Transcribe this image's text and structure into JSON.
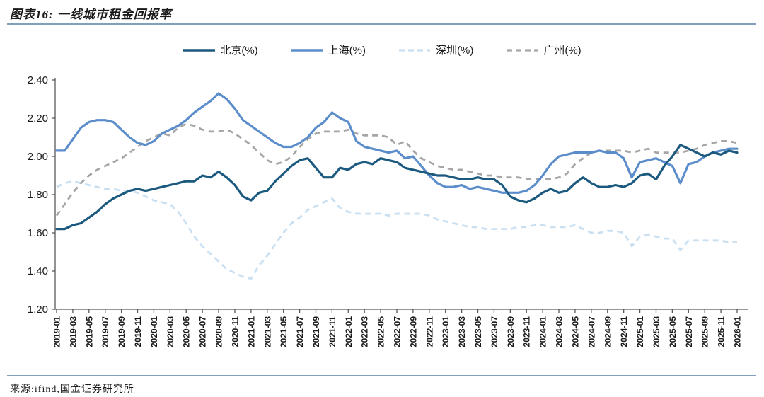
{
  "title": "图表16: 一线城市租金回报率",
  "source": "来源:ifind,国金证券研究所",
  "colors": {
    "beijing": "#1B597F",
    "shanghai": "#5C8DCB",
    "shenzhen": "#C9DFF2",
    "guangzhou": "#A6A6A6",
    "rule": "#7FA0BE",
    "axis": "#595959",
    "text": "#1A1A1A"
  },
  "chart_data": {
    "type": "line",
    "title": "",
    "ylabel": "",
    "xlabel": "",
    "ylim": [
      1.2,
      2.4
    ],
    "y_ticks": [
      1.2,
      1.4,
      1.6,
      1.8,
      2.0,
      2.2,
      2.4
    ],
    "grid": false,
    "legend_position": "top-center",
    "x_monthly_count": 85,
    "x_start": "2019-01",
    "x_end": "2026-01",
    "x_tick_labels": [
      "2019-01",
      "2019-03",
      "2019-05",
      "2019-07",
      "2019-09",
      "2019-11",
      "2020-01",
      "2020-03",
      "2020-05",
      "2020-07",
      "2020-09",
      "2020-11",
      "2021-01",
      "2021-03",
      "2021-05",
      "2021-07",
      "2021-09",
      "2021-11",
      "2022-01",
      "2022-03",
      "2022-05",
      "2022-07",
      "2022-09",
      "2022-11",
      "2023-01",
      "2023-03",
      "2023-05",
      "2023-07",
      "2023-09",
      "2023-11",
      "2024-01",
      "2024-03",
      "2024-05",
      "2024-07",
      "2024-09",
      "2024-11",
      "2025-01",
      "2025-03",
      "2025-05",
      "2025-07",
      "2025-09",
      "2025-11",
      "2026-01"
    ],
    "series": [
      {
        "name": "北京(%)",
        "key": "beijing",
        "color": "#1B597F",
        "dash": false,
        "values": [
          1.62,
          1.62,
          1.64,
          1.65,
          1.68,
          1.71,
          1.75,
          1.78,
          1.8,
          1.82,
          1.83,
          1.82,
          1.83,
          1.84,
          1.85,
          1.86,
          1.87,
          1.87,
          1.9,
          1.89,
          1.92,
          1.89,
          1.85,
          1.79,
          1.77,
          1.81,
          1.82,
          1.87,
          1.91,
          1.95,
          1.98,
          1.99,
          1.94,
          1.89,
          1.89,
          1.94,
          1.93,
          1.96,
          1.97,
          1.96,
          1.99,
          1.98,
          1.97,
          1.94,
          1.93,
          1.92,
          1.91,
          1.9,
          1.9,
          1.89,
          1.88,
          1.88,
          1.89,
          1.88,
          1.88,
          1.85,
          1.79,
          1.77,
          1.76,
          1.78,
          1.81,
          1.83,
          1.81,
          1.82,
          1.86,
          1.89,
          1.86,
          1.84,
          1.84,
          1.85,
          1.84,
          1.86,
          1.9,
          1.91,
          1.88,
          1.95,
          2.0,
          2.06,
          2.04,
          2.02,
          2.0,
          2.02,
          2.01,
          2.03,
          2.02
        ]
      },
      {
        "name": "上海(%)",
        "key": "shanghai",
        "color": "#5C8DCB",
        "dash": false,
        "values": [
          2.03,
          2.03,
          2.09,
          2.15,
          2.18,
          2.19,
          2.19,
          2.18,
          2.14,
          2.1,
          2.07,
          2.06,
          2.08,
          2.12,
          2.14,
          2.16,
          2.19,
          2.23,
          2.26,
          2.29,
          2.33,
          2.3,
          2.25,
          2.19,
          2.16,
          2.13,
          2.1,
          2.07,
          2.05,
          2.05,
          2.07,
          2.1,
          2.15,
          2.18,
          2.23,
          2.2,
          2.18,
          2.08,
          2.05,
          2.04,
          2.03,
          2.02,
          2.03,
          1.99,
          2.0,
          1.95,
          1.9,
          1.86,
          1.84,
          1.84,
          1.85,
          1.83,
          1.84,
          1.83,
          1.82,
          1.81,
          1.81,
          1.81,
          1.82,
          1.85,
          1.9,
          1.96,
          2.0,
          2.01,
          2.02,
          2.02,
          2.02,
          2.03,
          2.02,
          2.02,
          1.99,
          1.89,
          1.97,
          1.98,
          1.99,
          1.97,
          1.95,
          1.86,
          1.96,
          1.97,
          2.0,
          2.02,
          2.03,
          2.04,
          2.04
        ]
      },
      {
        "name": "深圳(%)",
        "key": "shenzhen",
        "color": "#C9DFF2",
        "dash": true,
        "values": [
          1.84,
          1.86,
          1.87,
          1.86,
          1.85,
          1.84,
          1.83,
          1.83,
          1.82,
          1.82,
          1.81,
          1.79,
          1.77,
          1.76,
          1.75,
          1.71,
          1.65,
          1.58,
          1.53,
          1.49,
          1.45,
          1.41,
          1.39,
          1.37,
          1.36,
          1.43,
          1.48,
          1.54,
          1.6,
          1.65,
          1.68,
          1.72,
          1.74,
          1.76,
          1.78,
          1.73,
          1.71,
          1.7,
          1.7,
          1.7,
          1.7,
          1.69,
          1.7,
          1.7,
          1.7,
          1.7,
          1.69,
          1.67,
          1.66,
          1.65,
          1.64,
          1.63,
          1.63,
          1.62,
          1.62,
          1.62,
          1.62,
          1.63,
          1.63,
          1.64,
          1.64,
          1.63,
          1.63,
          1.63,
          1.64,
          1.62,
          1.6,
          1.6,
          1.61,
          1.61,
          1.6,
          1.53,
          1.58,
          1.59,
          1.58,
          1.57,
          1.57,
          1.51,
          1.56,
          1.56,
          1.56,
          1.56,
          1.56,
          1.55,
          1.55
        ]
      },
      {
        "name": "广州(%)",
        "key": "guangzhou",
        "color": "#A6A6A6",
        "dash": true,
        "values": [
          1.69,
          1.75,
          1.81,
          1.86,
          1.9,
          1.93,
          1.95,
          1.97,
          1.99,
          2.02,
          2.05,
          2.08,
          2.1,
          2.12,
          2.11,
          2.15,
          2.17,
          2.16,
          2.14,
          2.13,
          2.13,
          2.14,
          2.12,
          2.09,
          2.06,
          2.02,
          1.98,
          1.96,
          1.97,
          2.0,
          2.05,
          2.09,
          2.12,
          2.13,
          2.13,
          2.13,
          2.14,
          2.12,
          2.11,
          2.11,
          2.11,
          2.1,
          2.06,
          2.08,
          2.03,
          1.99,
          1.97,
          1.95,
          1.94,
          1.93,
          1.93,
          1.92,
          1.91,
          1.9,
          1.9,
          1.89,
          1.89,
          1.89,
          1.88,
          1.88,
          1.88,
          1.88,
          1.89,
          1.91,
          1.96,
          1.99,
          2.02,
          2.03,
          2.03,
          2.03,
          2.03,
          2.02,
          2.03,
          2.04,
          2.02,
          2.02,
          2.02,
          2.02,
          2.03,
          2.04,
          2.06,
          2.07,
          2.08,
          2.08,
          2.07
        ]
      }
    ]
  }
}
